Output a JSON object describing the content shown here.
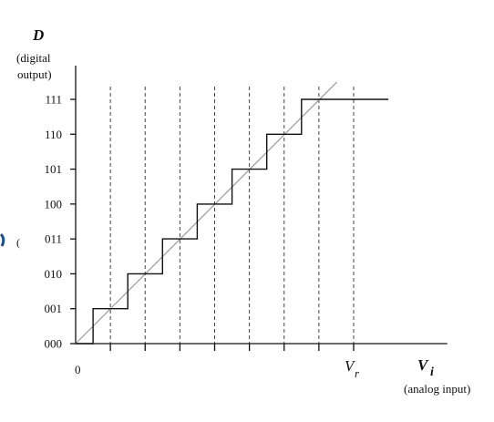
{
  "y_axis": {
    "symbol": "D",
    "caption_line1": "(digital",
    "caption_line2": "output)",
    "codes": [
      "000",
      "001",
      "010",
      "011",
      "100",
      "101",
      "110",
      "111"
    ]
  },
  "x_axis": {
    "origin_label": "0",
    "ref_symbol": "V",
    "ref_subscript": "r",
    "input_symbol": "V",
    "input_subscript": "i",
    "caption": "(analog input)"
  },
  "chart_data": {
    "type": "line",
    "series": [
      {
        "x": [
          0,
          0.0625,
          0.0625,
          0.1875,
          0.1875,
          0.3125,
          0.3125,
          0.4375,
          0.4375,
          0.5625,
          0.5625,
          0.6875,
          0.6875,
          0.8125,
          0.8125,
          0.9375,
          0.9375,
          1.125
        ],
        "values": [
          0,
          0,
          1,
          1,
          2,
          2,
          3,
          3,
          4,
          4,
          5,
          5,
          6,
          6,
          7,
          7,
          7,
          7
        ]
      },
      {
        "x": [
          0,
          0.94
        ],
        "values": [
          0,
          7.5
        ]
      }
    ],
    "xlim": [
      0,
      1.15
    ],
    "ylim": [
      0,
      7.5
    ],
    "x_ticks": [
      0.125,
      0.25,
      0.375,
      0.5,
      0.625,
      0.75,
      0.875,
      1.0
    ],
    "y_ticks": [
      0,
      1,
      2,
      3,
      4,
      5,
      6,
      7
    ],
    "grid": "vertical dashed lines at each x tick"
  },
  "colors": {
    "axis": "#111111",
    "staircase": "#111111",
    "ideal_line": "#9a9a9a",
    "grid": "#444444",
    "fragment": "#1d4f8c"
  }
}
